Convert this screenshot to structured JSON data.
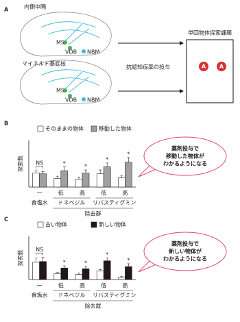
{
  "panel_a": {
    "label": "A",
    "brains": [
      {
        "title": "内側中隔",
        "nuclei": [
          "MS",
          "VDB",
          "NBM"
        ]
      },
      {
        "title": "マイネルト基底核",
        "nuclei": [
          "MS",
          "VDB",
          "NBM"
        ]
      }
    ],
    "arrow_label": "抗認知症薬の投与",
    "task": {
      "title": "単回物体探索課題",
      "objects": [
        "A",
        "A"
      ]
    }
  },
  "chart_data": [
    {
      "type": "bar",
      "panel": "B",
      "ylabel": "探索数",
      "ylim": [
        0,
        30
      ],
      "groups": [
        {
          "label": "食塩水",
          "categories": [
            "一"
          ]
        },
        {
          "label": "ドネペジル",
          "categories": [
            "低",
            "高"
          ]
        },
        {
          "label": "リバスティグミン",
          "categories": [
            "低",
            "高"
          ]
        }
      ],
      "group_title": "除去群",
      "series": [
        {
          "name": "そのままの物体",
          "color": "#ffffff",
          "values": [
            9,
            5.5,
            5,
            8.5,
            6
          ],
          "errors": [
            1.5,
            1.5,
            1.5,
            2.5,
            1.5
          ]
        },
        {
          "name": "移動した物体",
          "color": "#a0a0a0",
          "values": [
            8.5,
            10.5,
            9,
            13,
            16
          ],
          "errors": [
            1.5,
            2.5,
            2,
            2.5,
            3
          ]
        }
      ],
      "annotations": [
        "NS",
        "*",
        "*",
        "*",
        "*"
      ],
      "callout": [
        "薬剤投与で",
        "移動した物体が",
        "わかるようになる"
      ]
    },
    {
      "type": "bar",
      "panel": "C",
      "ylabel": "探索数",
      "ylim": [
        0,
        30
      ],
      "groups": [
        {
          "label": "食塩水",
          "categories": [
            "一"
          ]
        },
        {
          "label": "ドネペジル",
          "categories": [
            "低",
            "高"
          ]
        },
        {
          "label": "リバスティグミン",
          "categories": [
            "低",
            "高"
          ]
        }
      ],
      "group_title": "除去群",
      "series": [
        {
          "name": "古い物体",
          "color": "#ffffff",
          "values": [
            12,
            4,
            3.5,
            6,
            1.5
          ],
          "errors": [
            3,
            1,
            1,
            1,
            0.8
          ]
        },
        {
          "name": "新しい物体",
          "color": "#231815",
          "values": [
            12.5,
            8,
            7.5,
            13,
            9
          ],
          "errors": [
            3,
            1.5,
            1.5,
            2,
            2
          ]
        }
      ],
      "annotations": [
        "NS",
        "*",
        "*",
        "*",
        "*"
      ],
      "callout": [
        "薬剤投与で",
        "新しい物体が",
        "わかるようになる"
      ]
    }
  ]
}
